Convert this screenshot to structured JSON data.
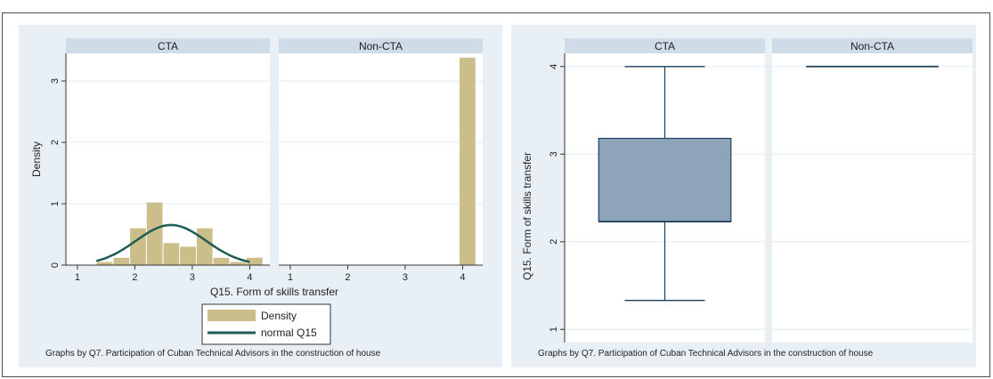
{
  "chart_data": [
    {
      "type": "histogram",
      "panels": [
        "CTA",
        "Non-CTA"
      ],
      "xlabel": "Q15. Form of skills transfer",
      "ylabel": "Density",
      "xticks": [
        "1",
        "2",
        "3",
        "4"
      ],
      "yticks": [
        "0",
        "1",
        "2",
        "3"
      ],
      "xlim": [
        0.8,
        4.35
      ],
      "ylim": [
        0,
        3.45
      ],
      "bin_width": 0.29,
      "series": [
        {
          "name": "Density",
          "color": "#cbbe8a",
          "panel_values": {
            "CTA": {
              "bin_starts": [
                1.33,
                1.62,
                1.91,
                2.2,
                2.49,
                2.78,
                3.07,
                3.36,
                3.65,
                3.94
              ],
              "values": [
                0.05,
                0.12,
                0.6,
                1.02,
                0.36,
                0.3,
                0.6,
                0.12,
                0.05,
                0.12
              ]
            },
            "Non-CTA": {
              "bin_starts": [
                3.94
              ],
              "values": [
                3.38
              ]
            }
          }
        },
        {
          "name": "normal Q15",
          "color": "#1f5c55",
          "panel_values": {
            "CTA": {
              "mean": 2.63,
              "sd": 0.61,
              "x_range": [
                1.33,
                4.0
              ]
            }
          }
        }
      ],
      "legend": {
        "entries": [
          "Density",
          "normal Q15"
        ],
        "placement": "bottom-center"
      },
      "note": "Graphs by Q7. Participation of Cuban Technical Advisors in the construction of house",
      "grid": true
    },
    {
      "type": "box",
      "panels": [
        "CTA",
        "Non-CTA"
      ],
      "ylabel": "Q15. Form of skills transfer",
      "yticks": [
        "1",
        "2",
        "3",
        "4"
      ],
      "ylim": [
        0.85,
        4.15
      ],
      "series": [
        {
          "name": "Q15. Form of skills transfer",
          "color": "#8ea4b8",
          "panel_values": {
            "CTA": {
              "min": 1.33,
              "q1": 2.23,
              "median": 2.23,
              "q3": 3.18,
              "max": 4.0
            },
            "Non-CTA": {
              "min": 4.0,
              "q1": 4.0,
              "median": 4.0,
              "q3": 4.0,
              "max": 4.0
            }
          }
        }
      ],
      "note": "Graphs by Q7. Participation of Cuban Technical Advisors in the construction of house",
      "grid": true
    }
  ]
}
